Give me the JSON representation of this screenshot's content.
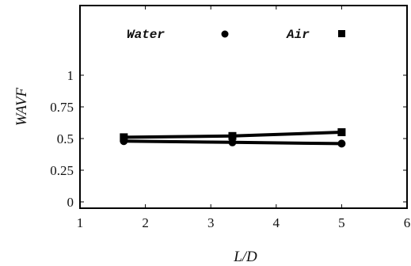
{
  "chart_data": {
    "type": "line",
    "xlabel": "L/D",
    "ylabel": "WAVF",
    "xlim": [
      1,
      6
    ],
    "ylim": [
      -0.05,
      1.55
    ],
    "x_ticks": [
      1,
      2,
      3,
      4,
      5,
      6
    ],
    "y_ticks": [
      0,
      0.25,
      0.5,
      0.75,
      1
    ],
    "x_tick_labels": [
      "1",
      "2",
      "3",
      "4",
      "5",
      "6"
    ],
    "y_tick_labels": [
      "0",
      "0.25",
      "0.5",
      "0.75",
      "1"
    ],
    "grid": false,
    "legend_position": "top",
    "series": [
      {
        "name": "Water",
        "marker": "circle",
        "color": "#000000",
        "x": [
          1.67,
          3.33,
          5.0
        ],
        "y": [
          0.48,
          0.47,
          0.46
        ]
      },
      {
        "name": "Air",
        "marker": "square",
        "color": "#000000",
        "x": [
          1.67,
          3.33,
          5.0
        ],
        "y": [
          0.51,
          0.52,
          0.55
        ]
      }
    ]
  }
}
